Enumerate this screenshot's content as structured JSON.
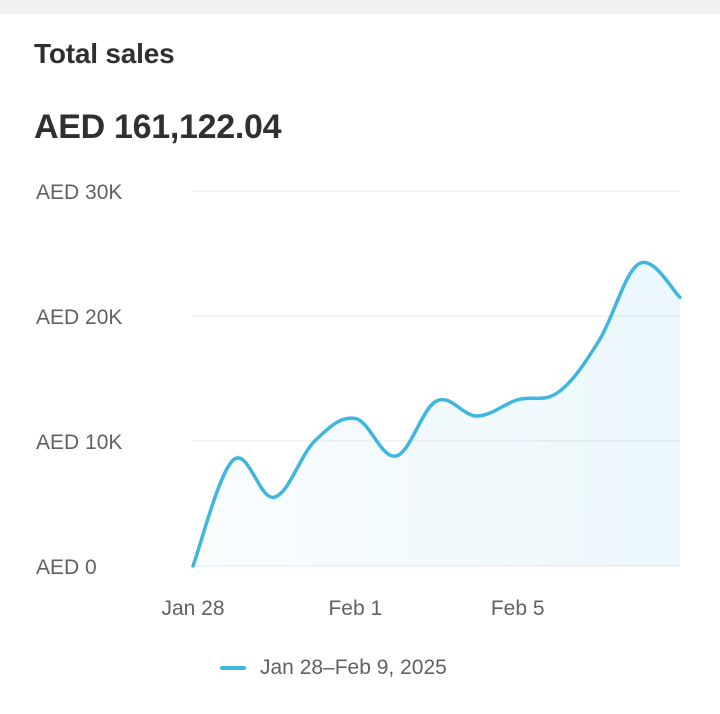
{
  "card": {
    "title": "Total sales",
    "value": "AED 161,122.04"
  },
  "colors": {
    "line": "#3fb6de",
    "grid": "#ececec",
    "axis_text": "#616161"
  },
  "chart_data": {
    "type": "area",
    "title": "Total sales",
    "x": [
      "Jan 28",
      "Jan 29",
      "Jan 30",
      "Jan 31",
      "Feb 1",
      "Feb 2",
      "Feb 3",
      "Feb 4",
      "Feb 5",
      "Feb 6",
      "Feb 7",
      "Feb 8",
      "Feb 9"
    ],
    "x_tick_labels": [
      "Jan 28",
      "Feb 1",
      "Feb 5"
    ],
    "series": [
      {
        "name": "Jan 28–Feb 9, 2025",
        "values": [
          0,
          8500,
          5500,
          10000,
          11800,
          8800,
          13200,
          12000,
          13300,
          13900,
          18000,
          24200,
          21500
        ]
      }
    ],
    "y_tick_labels": [
      "AED 0",
      "AED 10K",
      "AED 20K",
      "AED 30K"
    ],
    "y_ticks": [
      0,
      10000,
      20000,
      30000
    ],
    "ylim": [
      0,
      30000
    ],
    "grid": true,
    "legend": "bottom-center",
    "legend_label": "Jan 28–Feb 9, 2025"
  }
}
